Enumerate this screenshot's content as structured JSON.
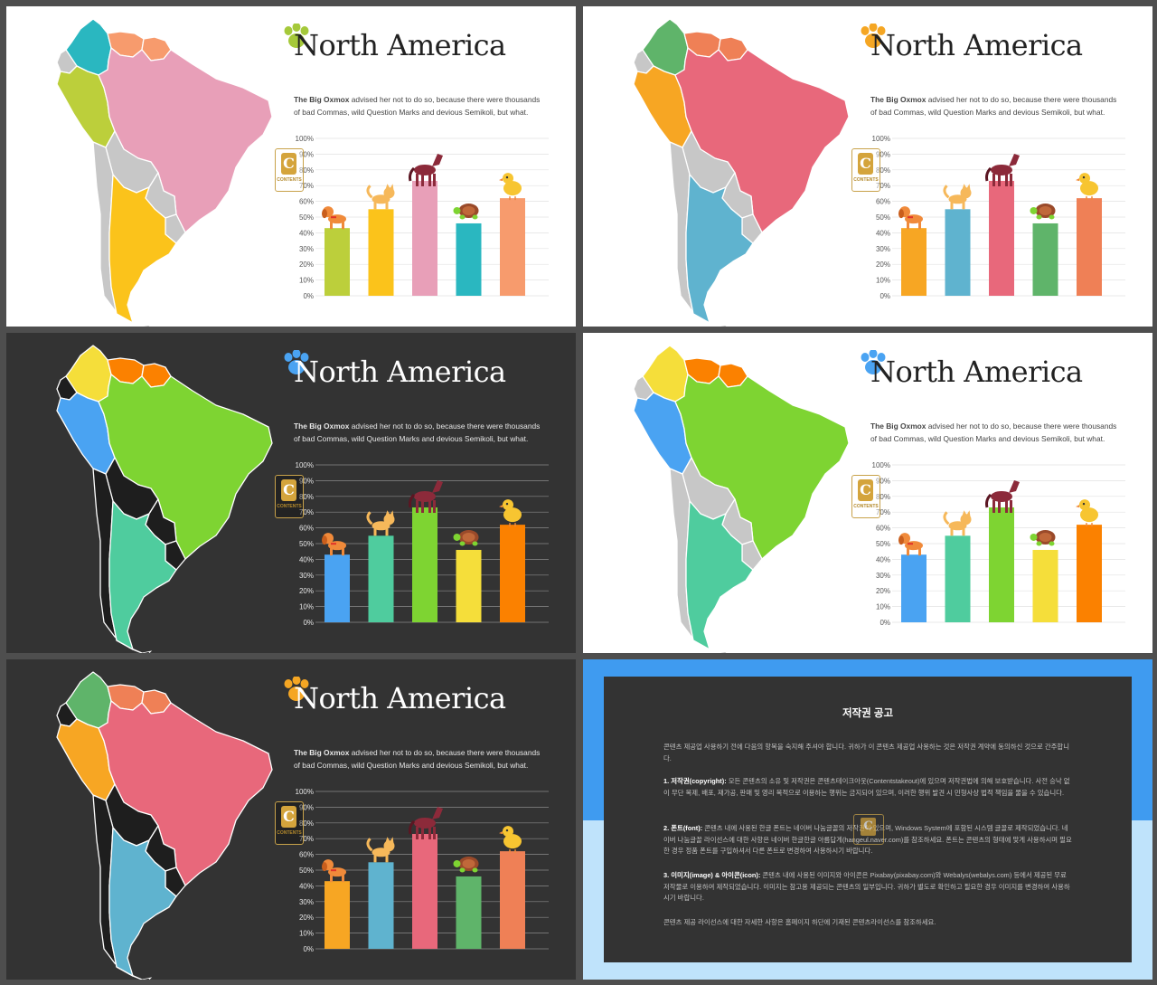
{
  "slides": [
    {
      "theme": "light",
      "title": "North America",
      "desc_bold": "The Big Oxmox",
      "desc_rest": " advised her not to do so, because there were thousands of bad Commas, wild Question Marks and devious Semikoli, but what.",
      "paw_color": "#a5c93a",
      "logo_letter": "C",
      "logo_text": "CONTENTS",
      "map_colors": {
        "land": "#c7c7c7",
        "colombia": "#2ab7c0",
        "venezuela": "#f79b6d",
        "guianas": "#f79b6d",
        "peru": "#bccf3b",
        "brazil": "#e89fb8",
        "argentina": "#fbc31b",
        "border": "#ffffff"
      },
      "bar_colors": [
        "#bccf3b",
        "#fbc31b",
        "#e89fb8",
        "#2ab7c0",
        "#f79b6d"
      ]
    },
    {
      "theme": "light",
      "title": "North America",
      "desc_bold": "The Big Oxmox",
      "desc_rest": " advised her not to do so, because there were thousands of bad Commas, wild Question Marks and devious Semikoli, but what.",
      "paw_color": "#f5a623",
      "logo_letter": "C",
      "logo_text": "CONTENTS",
      "map_colors": {
        "land": "#c7c7c7",
        "colombia": "#5fb46a",
        "venezuela": "#ef8056",
        "guianas": "#ef8056",
        "peru": "#f7a623",
        "brazil": "#e8687b",
        "argentina": "#5fb3cf",
        "border": "#ffffff"
      },
      "bar_colors": [
        "#f7a623",
        "#5fb3cf",
        "#e8687b",
        "#5fb46a",
        "#ef8056"
      ]
    },
    {
      "theme": "dark",
      "title": "North America",
      "desc_bold": "The Big Oxmox",
      "desc_rest": " advised her not to do so, because there were thousands of bad Commas, wild Question Marks and devious Semikoli, but what.",
      "paw_color": "#4aa3f2",
      "logo_letter": "C",
      "logo_text": "CONTENTS",
      "map_colors": {
        "land": "#1e1e1e",
        "colombia": "#f5de3a",
        "venezuela": "#fb8100",
        "guianas": "#fb8100",
        "peru": "#4aa3f2",
        "brazil": "#7ed432",
        "argentina": "#4fcc9e",
        "border": "#ffffff"
      },
      "bar_colors": [
        "#4aa3f2",
        "#4fcc9e",
        "#7ed432",
        "#f5de3a",
        "#fb8100"
      ]
    },
    {
      "theme": "light",
      "title": "North America",
      "desc_bold": "The Big Oxmox",
      "desc_rest": " advised her not to do so, because there were thousands of bad Commas, wild Question Marks and devious Semikoli, but what.",
      "paw_color": "#4aa3f2",
      "logo_letter": "C",
      "logo_text": "CONTENTS",
      "map_colors": {
        "land": "#c7c7c7",
        "colombia": "#f5de3a",
        "venezuela": "#fb8100",
        "guianas": "#fb8100",
        "peru": "#4aa3f2",
        "brazil": "#7ed432",
        "argentina": "#4fcc9e",
        "border": "#ffffff"
      },
      "bar_colors": [
        "#4aa3f2",
        "#4fcc9e",
        "#7ed432",
        "#f5de3a",
        "#fb8100"
      ]
    },
    {
      "theme": "dark",
      "title": "North America",
      "desc_bold": "The Big Oxmox",
      "desc_rest": " advised her not to do so, because there were thousands of bad Commas, wild Question Marks and devious Semikoli, but what.",
      "paw_color": "#f5a623",
      "logo_letter": "C",
      "logo_text": "CONTENTS",
      "map_colors": {
        "land": "#1e1e1e",
        "colombia": "#5fb46a",
        "venezuela": "#ef8056",
        "guianas": "#ef8056",
        "peru": "#f7a623",
        "brazil": "#e8687b",
        "argentina": "#5fb3cf",
        "border": "#ffffff"
      },
      "bar_colors": [
        "#f7a623",
        "#5fb3cf",
        "#e8687b",
        "#5fb46a",
        "#ef8056"
      ]
    }
  ],
  "animal_icons": [
    "dog-icon",
    "cat-icon",
    "horse-icon",
    "turtle-icon",
    "chick-icon"
  ],
  "chart_data": {
    "type": "bar",
    "categories": [
      "dog",
      "cat",
      "horse",
      "turtle",
      "chick"
    ],
    "values": [
      43,
      55,
      73,
      46,
      62
    ],
    "yticks": [
      "0%",
      "10%",
      "20%",
      "30%",
      "40%",
      "50%",
      "60%",
      "70%",
      "80%",
      "90%",
      "100%"
    ],
    "ylim": [
      0,
      100
    ],
    "grid": true,
    "title": "",
    "xlabel": "",
    "ylabel": ""
  },
  "copyright": {
    "heading": "저작권 공고",
    "intro": "콘텐츠 제공업 사용하기 전에 다음의 항목을 숙지해 주셔야 합니다. 귀하가 이 콘텐츠 제공업 사용하는 것은 저작권 계약에 동의하신 것으로 간주합니다.",
    "p1_label": "1. 저작권(copyright):",
    "p1_text": " 모든 콘텐츠의 소유 및 저작권은 콘텐츠테이크아웃(Contentstakeout)에 있으며 저작권법에 의해 보호받습니다. 사전 승낙 없이 무단 복제, 배포, 재가공, 판매 및 영리 목적으로 이용하는 행위는 금지되어 있으며, 이러한 행위 발견 시 민형사상 법적 책임을 물을 수 있습니다.",
    "p2_label": "2. 폰트(font):",
    "p2_text": " 콘텐츠 내에 사용된 한글 폰트는 네이버 나눔글꼴의 저작권이 있으며, Windows System에 포함된 시스템 글꼴로 제작되었습니다. 네이버 나눔글꼴 라이선스에 대한 사항은 네이버 한글한글 아름답게(hangeul.naver.com)를 참조하세요. 폰트는 콘텐츠의 형태에 맞게 사용하시며 필요한 경우 정품 폰트를 구입하셔서 다른 폰트로 변경하여 사용하시기 바랍니다.",
    "p3_label": "3. 이미지(image) & 아이콘(icon):",
    "p3_text": " 콘텐츠 내에 사용된 이미지와 아이콘은 Pixabay(pixabay.com)와 Webalys(webalys.com) 등에서 제공된 무료 저작물로 이용하여 제작되었습니다. 이미지는 참고용 제공되는 콘텐츠의 일부입니다. 귀하가 별도로 확인하고 필요한 경우 이미지를 변경하여 사용하시기 바랍니다.",
    "outro": "콘텐츠 제공 라이선스에 대한 자세한 사항은 홈페이지 하단에 기재된 콘텐츠라이선스를 참조하세요.",
    "watermark_letter": "C",
    "colors": {
      "top": "#3f9bf0",
      "bottom": "#bfe3fb",
      "panel": "#333333"
    }
  }
}
